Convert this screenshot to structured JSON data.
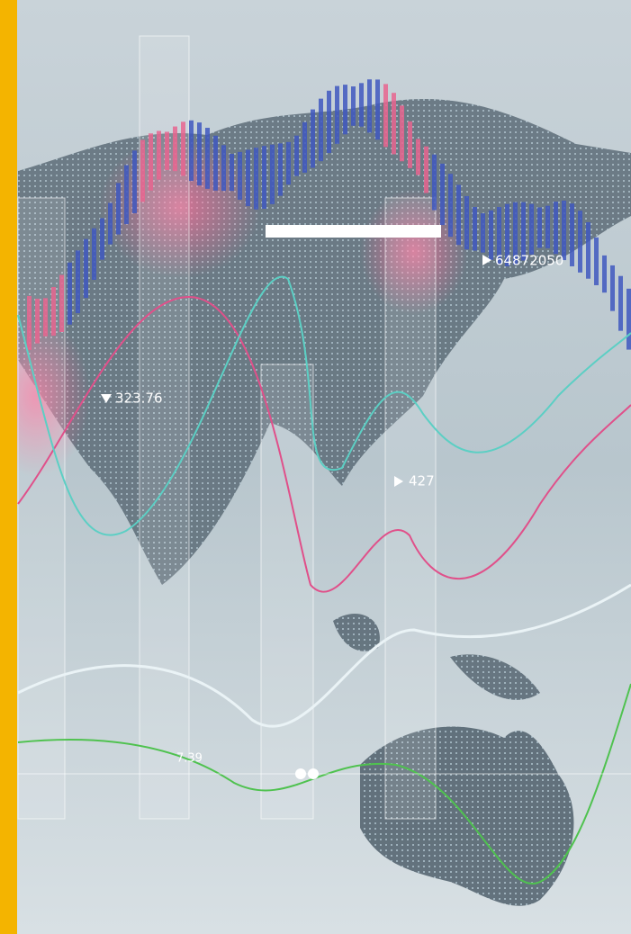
{
  "labels": [
    {
      "text": "323.76"
    },
    {
      "text": "64872050"
    },
    {
      "text": "427"
    },
    {
      "text": "7.39"
    }
  ]
}
